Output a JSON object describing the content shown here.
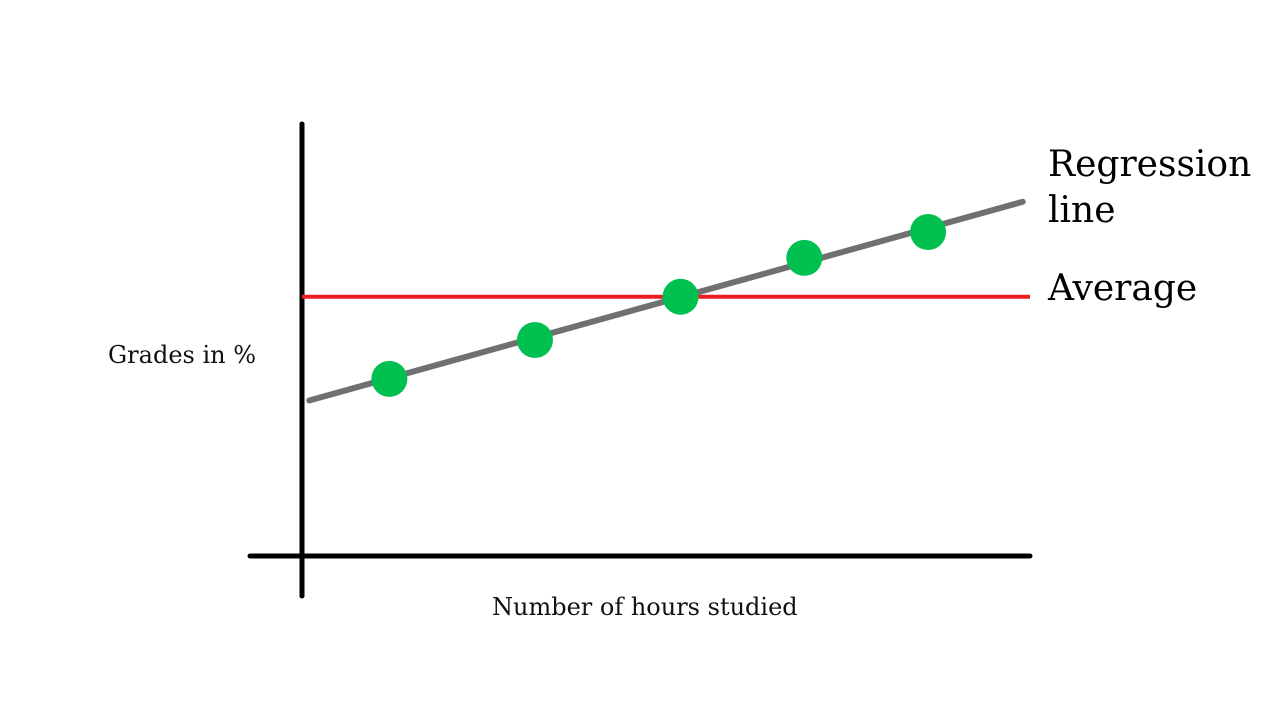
{
  "chart_data": {
    "type": "scatter",
    "title": "",
    "xlabel": "Number of hours studied",
    "ylabel": "Grades in %",
    "xlim": [
      0,
      10
    ],
    "ylim": [
      0,
      10
    ],
    "grid": false,
    "series": [
      {
        "values_type": "points",
        "points": [
          {
            "x": 1.2,
            "y": 4.1
          },
          {
            "x": 3.2,
            "y": 5.0
          },
          {
            "x": 5.2,
            "y": 6.0
          },
          {
            "x": 6.9,
            "y": 6.9
          },
          {
            "x": 8.6,
            "y": 7.5
          }
        ],
        "color": "#00c050"
      }
    ],
    "regression_line": {
      "label": "Regression line",
      "label_lines": [
        "Regression",
        "line"
      ],
      "x": [
        0.1,
        9.9
      ],
      "y": [
        3.6,
        8.2
      ],
      "color": "#707070"
    },
    "average_line": {
      "label": "Average",
      "y": 6.0,
      "x_range": [
        0,
        10
      ],
      "color": "#ee1c24"
    },
    "axis_color": "#000000"
  }
}
